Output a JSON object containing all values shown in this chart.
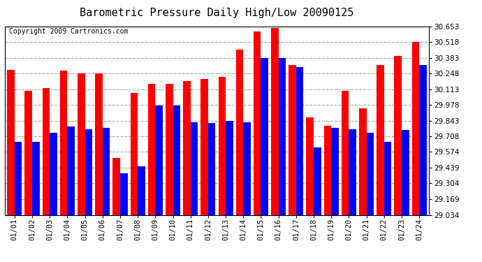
{
  "title": "Barometric Pressure Daily High/Low 20090125",
  "copyright": "Copyright 2009 Cartronics.com",
  "categories": [
    "01/01",
    "01/02",
    "01/03",
    "01/04",
    "01/05",
    "01/06",
    "01/07",
    "01/08",
    "01/09",
    "01/10",
    "01/11",
    "01/12",
    "01/13",
    "01/14",
    "01/15",
    "01/16",
    "01/17",
    "01/18",
    "01/19",
    "01/20",
    "01/21",
    "01/22",
    "01/23",
    "01/24"
  ],
  "highs": [
    30.28,
    30.1,
    30.12,
    30.27,
    30.25,
    30.25,
    29.52,
    30.08,
    30.16,
    30.16,
    30.18,
    30.2,
    30.22,
    30.45,
    30.61,
    30.64,
    30.32,
    29.87,
    29.8,
    30.1,
    29.95,
    30.32,
    30.4,
    30.52
  ],
  "lows": [
    29.66,
    29.66,
    29.74,
    29.79,
    29.77,
    29.78,
    29.39,
    29.45,
    29.97,
    29.97,
    29.83,
    29.82,
    29.84,
    29.83,
    30.38,
    30.38,
    30.3,
    29.61,
    29.78,
    29.77,
    29.74,
    29.66,
    29.76,
    30.32
  ],
  "high_color": "#ff0000",
  "low_color": "#0000ff",
  "bg_color": "#ffffff",
  "grid_color": "#aaaaaa",
  "ymin": 29.034,
  "ymax": 30.653,
  "yticks": [
    29.034,
    29.169,
    29.304,
    29.439,
    29.574,
    29.708,
    29.843,
    29.978,
    30.113,
    30.248,
    30.383,
    30.518,
    30.653
  ],
  "title_fontsize": 11,
  "copyright_fontsize": 7,
  "tick_fontsize": 7.5
}
